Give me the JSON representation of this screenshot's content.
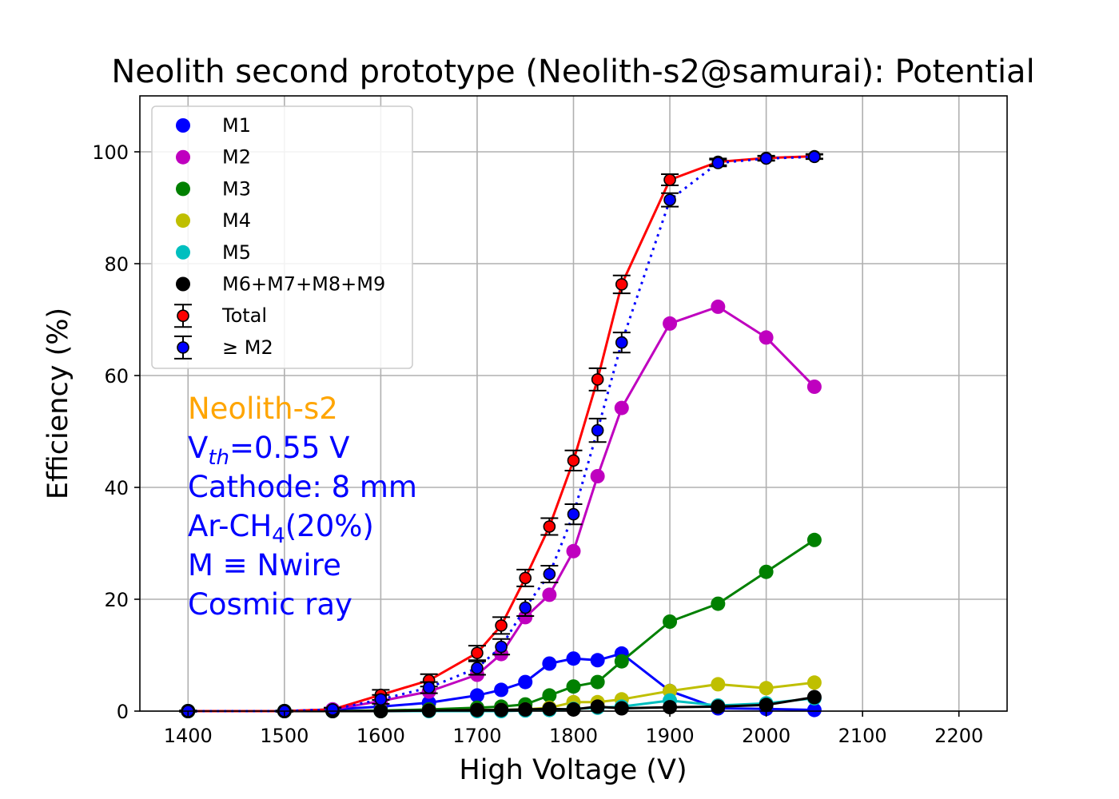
{
  "chart_data": {
    "type": "line",
    "title": "Neolith second prototype (Neolith-s2@samurai): Potential",
    "xlabel": "High Voltage (V)",
    "ylabel": "Efficiency (%)",
    "xlim": [
      1350,
      2250
    ],
    "ylim": [
      0,
      110
    ],
    "xticks": [
      1400,
      1500,
      1600,
      1700,
      1800,
      1900,
      2000,
      2100,
      2200
    ],
    "yticks": [
      0,
      20,
      40,
      60,
      80,
      100
    ],
    "grid": true,
    "legend_placement": "upper-left",
    "annotations": {
      "detector": "Neolith-s2",
      "vth_prefix": "V",
      "vth_sub": "th",
      "vth_rest": "=0.55 V",
      "cathode": "Cathode: 8 mm",
      "gas_prefix": "Ar-CH",
      "gas_sub": "4",
      "gas_rest": "(20%)",
      "m_def": "M ≡ Nwire",
      "source": "Cosmic ray",
      "detector_color": "#ffa500",
      "text_color": "#0000ff"
    },
    "x": [
      1400,
      1500,
      1550,
      1600,
      1650,
      1700,
      1725,
      1750,
      1775,
      1800,
      1825,
      1850,
      1900,
      1950,
      2000,
      2050
    ],
    "series": [
      {
        "name": "M1",
        "color": "#0000ff",
        "style": "line-marker",
        "values": [
          0,
          0,
          0.3,
          0.8,
          1.5,
          2.8,
          3.8,
          5.2,
          8.5,
          9.4,
          9.1,
          10.3,
          3.6,
          0.5,
          0.4,
          0.2
        ]
      },
      {
        "name": "M2",
        "color": "#bf00bf",
        "style": "line-marker",
        "values": [
          0,
          0,
          0.3,
          1.8,
          3.5,
          6.5,
          10.2,
          16.8,
          20.8,
          28.6,
          42.0,
          54.2,
          69.3,
          72.3,
          66.8,
          58.0
        ]
      },
      {
        "name": "M3",
        "color": "#008000",
        "style": "line-marker",
        "values": [
          0,
          0,
          0,
          0.1,
          0.3,
          0.6,
          0.8,
          1.2,
          2.8,
          4.4,
          5.2,
          8.9,
          16.0,
          19.2,
          24.9,
          30.6
        ]
      },
      {
        "name": "M4",
        "color": "#bfbf00",
        "style": "line-marker",
        "values": [
          0,
          0,
          0,
          0,
          0.1,
          0.2,
          0.2,
          0.3,
          0.6,
          1.6,
          1.6,
          2.1,
          3.6,
          4.8,
          4.1,
          5.1
        ]
      },
      {
        "name": "M5",
        "color": "#00bfbf",
        "style": "line-marker",
        "values": [
          0,
          0,
          0,
          0,
          0,
          0,
          0,
          0.1,
          0.2,
          0.4,
          0.6,
          0.8,
          1.9,
          1.0,
          1.4,
          2.3
        ]
      },
      {
        "name": "M6+M7+M8+M9",
        "color": "#000000",
        "style": "line-marker",
        "values": [
          0,
          0,
          0,
          0,
          0.1,
          0.2,
          0.2,
          0.3,
          0.4,
          0.3,
          0.8,
          0.5,
          0.7,
          0.8,
          1.1,
          2.5
        ]
      },
      {
        "name": "Total",
        "color": "#ff0000",
        "style": "errorbar-solid",
        "values": [
          0,
          0,
          0.3,
          2.9,
          5.5,
          10.4,
          15.3,
          23.8,
          33.0,
          44.8,
          59.3,
          76.3,
          95.0,
          98.2,
          98.9,
          99.2
        ],
        "errors": [
          0.1,
          0.1,
          0.3,
          0.9,
          1.1,
          1.3,
          1.5,
          1.5,
          1.5,
          1.8,
          2.0,
          1.6,
          1.0,
          0.6,
          0.4,
          0.4
        ]
      },
      {
        "name": "≥ M2",
        "color": "#0000ff",
        "style": "errorbar-dotted",
        "values": [
          0,
          0,
          0.3,
          2.1,
          4.2,
          7.7,
          11.5,
          18.5,
          24.5,
          35.2,
          50.2,
          65.9,
          91.4,
          98.0,
          98.8,
          99.1
        ],
        "errors": [
          0.1,
          0.1,
          0.3,
          0.8,
          1.0,
          1.2,
          1.4,
          1.5,
          1.5,
          1.8,
          2.1,
          1.8,
          1.2,
          0.6,
          0.4,
          0.4
        ]
      }
    ]
  }
}
